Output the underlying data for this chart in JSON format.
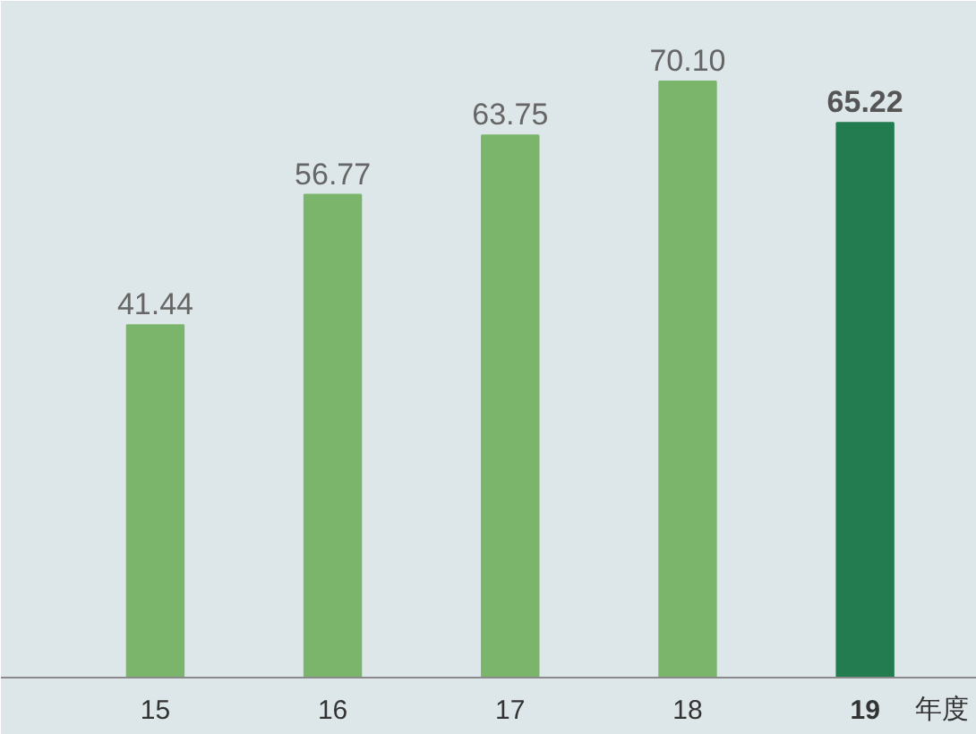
{
  "chart_data": {
    "type": "bar",
    "xlabel": "年度",
    "categories": [
      "15",
      "16",
      "17",
      "18",
      "19"
    ],
    "values": [
      41.44,
      56.77,
      63.75,
      70.1,
      65.22
    ],
    "colors": [
      "#7bb56b",
      "#7bb56b",
      "#7bb56b",
      "#7bb56b",
      "#237b50"
    ],
    "value_labels": [
      "41.44",
      "56.77",
      "63.75",
      "70.10",
      "65.22"
    ],
    "grid": false
  }
}
